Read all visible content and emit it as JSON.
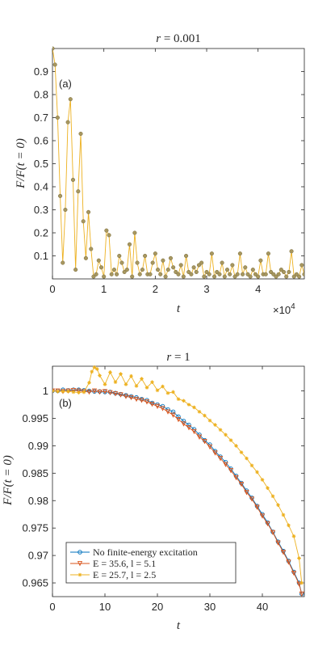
{
  "chart_data": [
    {
      "type": "line",
      "panel_label": "(a)",
      "title": "r = 0.001",
      "xlabel": "t",
      "ylabel": "F/F(t = 0)",
      "x_exponent": "×10",
      "x_exponent_power": "4",
      "xlim": [
        0,
        4.9
      ],
      "ylim": [
        0,
        1.0
      ],
      "xticks": [
        "0",
        "1",
        "2",
        "3",
        "4"
      ],
      "yticks": [
        "0.1",
        "0.2",
        "0.3",
        "0.4",
        "0.5",
        "0.6",
        "0.7",
        "0.8",
        "0.9"
      ],
      "colors": {
        "line": "#EDB120",
        "marker_face": "#A79760"
      },
      "series": [
        {
          "x": [
            0,
            0.05,
            0.1,
            0.15,
            0.2,
            0.25,
            0.3,
            0.35,
            0.4,
            0.45,
            0.5,
            0.55,
            0.6,
            0.65,
            0.7,
            0.75,
            0.8,
            0.85,
            0.9,
            0.95,
            1.0,
            1.05,
            1.1,
            1.15,
            1.2,
            1.25,
            1.3,
            1.35,
            1.4,
            1.45,
            1.5,
            1.55,
            1.6,
            1.65,
            1.7,
            1.75,
            1.8,
            1.85,
            1.9,
            1.95,
            2.0,
            2.05,
            2.1,
            2.15,
            2.2,
            2.25,
            2.3,
            2.35,
            2.4,
            2.45,
            2.5,
            2.55,
            2.6,
            2.65,
            2.7,
            2.75,
            2.8,
            2.85,
            2.9,
            2.95,
            3.0,
            3.05,
            3.1,
            3.15,
            3.2,
            3.25,
            3.3,
            3.35,
            3.4,
            3.45,
            3.5,
            3.55,
            3.6,
            3.65,
            3.7,
            3.75,
            3.8,
            3.85,
            3.9,
            3.95,
            4.0,
            4.05,
            4.1,
            4.15,
            4.2,
            4.25,
            4.3,
            4.35,
            4.4,
            4.45,
            4.5,
            4.55,
            4.6,
            4.65,
            4.7,
            4.75,
            4.8,
            4.85,
            4.9
          ],
          "y": [
            1.0,
            0.93,
            0.7,
            0.36,
            0.07,
            0.3,
            0.68,
            0.78,
            0.43,
            0.04,
            0.38,
            0.63,
            0.25,
            0.09,
            0.29,
            0.13,
            0.01,
            0.02,
            0.08,
            0.05,
            0.01,
            0.21,
            0.19,
            0.02,
            0.04,
            0.02,
            0.1,
            0.07,
            0.03,
            0.04,
            0.15,
            0.01,
            0.2,
            0.07,
            0.02,
            0.04,
            0.1,
            0.02,
            0.02,
            0.07,
            0.11,
            0.04,
            0.02,
            0.08,
            0.01,
            0.04,
            0.09,
            0.05,
            0.03,
            0.02,
            0.06,
            0.01,
            0.1,
            0.03,
            0.02,
            0.05,
            0.03,
            0.06,
            0.07,
            0.01,
            0.03,
            0.02,
            0.11,
            0.01,
            0.03,
            0.02,
            0.07,
            0.01,
            0.04,
            0.02,
            0.06,
            0.01,
            0.02,
            0.11,
            0.02,
            0.05,
            0.02,
            0.01,
            0.04,
            0.02,
            0.01,
            0.08,
            0.02,
            0.02,
            0.11,
            0.03,
            0.02,
            0.01,
            0.02,
            0.04,
            0.03,
            0.01,
            0.03,
            0.12,
            0.01,
            0.02,
            0.01,
            0.06,
            0.02
          ]
        }
      ]
    },
    {
      "type": "line",
      "panel_label": "(b)",
      "title": "r = 1",
      "xlabel": "t",
      "ylabel": "F/F(t = 0)",
      "xlim": [
        0,
        48
      ],
      "ylim": [
        0.9625,
        1.0045
      ],
      "xticks": [
        "0",
        "10",
        "20",
        "30",
        "40"
      ],
      "yticks": [
        "0.965",
        "0.97",
        "0.975",
        "0.98",
        "0.985",
        "0.99",
        "0.995",
        "1"
      ],
      "legend_position": "lower-left",
      "series": [
        {
          "name": "No finite-energy excitation",
          "color": "#0072BD",
          "marker": "circle",
          "x": [
            0,
            1,
            2,
            3,
            4,
            5,
            6,
            7,
            8,
            9,
            10,
            11,
            12,
            13,
            14,
            15,
            16,
            17,
            18,
            19,
            20,
            21,
            22,
            23,
            24,
            25,
            26,
            27,
            28,
            29,
            30,
            31,
            32,
            33,
            34,
            35,
            36,
            37,
            38,
            39,
            40,
            41,
            42,
            43,
            44,
            45,
            46,
            47,
            47.5
          ],
          "y": [
            1.0,
            1.0,
            1.0002,
            1.0001,
            1.0002,
            1.0002,
            1.0001,
            1.0,
            0.9999,
            0.9999,
            0.9998,
            0.9998,
            0.9996,
            0.9994,
            0.9992,
            0.999,
            0.9988,
            0.9985,
            0.9983,
            0.9978,
            0.9975,
            0.9972,
            0.9966,
            0.9962,
            0.9953,
            0.9945,
            0.9938,
            0.993,
            0.992,
            0.991,
            0.9902,
            0.989,
            0.988,
            0.987,
            0.9858,
            0.9845,
            0.9832,
            0.9818,
            0.9805,
            0.979,
            0.9775,
            0.976,
            0.9743,
            0.9725,
            0.9708,
            0.969,
            0.967,
            0.965,
            0.963
          ]
        },
        {
          "name": "E = 35.6, l = 5.1",
          "color": "#D95319",
          "marker": "triangle-down",
          "x": [
            0,
            1,
            2,
            3,
            4,
            5,
            6,
            7,
            8,
            9,
            10,
            11,
            12,
            13,
            14,
            15,
            16,
            17,
            18,
            19,
            20,
            21,
            22,
            23,
            24,
            25,
            26,
            27,
            28,
            29,
            30,
            31,
            32,
            33,
            34,
            35,
            36,
            37,
            38,
            39,
            40,
            41,
            42,
            43,
            44,
            45,
            46,
            47,
            47.5
          ],
          "y": [
            1.0,
            1.0,
            0.9999,
            1.0,
            1.0001,
            1.0,
            0.9999,
            0.9998,
            1.0,
            0.9998,
            0.9999,
            0.9997,
            0.9995,
            0.9993,
            0.999,
            0.9988,
            0.9985,
            0.9983,
            0.998,
            0.9976,
            0.9972,
            0.9968,
            0.9962,
            0.9956,
            0.9948,
            0.994,
            0.9933,
            0.9926,
            0.9916,
            0.9908,
            0.9898,
            0.9887,
            0.9877,
            0.9866,
            0.9855,
            0.9842,
            0.983,
            0.9815,
            0.9803,
            0.9788,
            0.9772,
            0.9758,
            0.9742,
            0.9723,
            0.9706,
            0.9688,
            0.9668,
            0.9648,
            0.963
          ]
        },
        {
          "name": "E = 25.7, l = 2.5",
          "color": "#EDB120",
          "marker": "star",
          "x": [
            0,
            1,
            2,
            3,
            4,
            5,
            6,
            7,
            7.5,
            8,
            8.5,
            9,
            10,
            11,
            12,
            13,
            14,
            15,
            16,
            17,
            18,
            19,
            20,
            21,
            22,
            23,
            24,
            25,
            26,
            27,
            28,
            29,
            30,
            31,
            32,
            33,
            34,
            35,
            36,
            37,
            38,
            39,
            40,
            41,
            42,
            43,
            44,
            45,
            46,
            47,
            47.5
          ],
          "y": [
            1.0,
            0.9999,
            0.9999,
            0.9999,
            0.9998,
            0.9997,
            0.9998,
            1.0015,
            1.0035,
            1.0043,
            1.004,
            1.0028,
            1.0012,
            1.0034,
            1.0016,
            1.0031,
            1.0012,
            1.0027,
            1.0009,
            1.0022,
            1.0006,
            1.0016,
            1.0001,
            1.0008,
            0.9996,
            0.9998,
            0.9985,
            0.9982,
            0.9975,
            0.997,
            0.9962,
            0.9955,
            0.9946,
            0.9938,
            0.9929,
            0.992,
            0.991,
            0.99,
            0.9888,
            0.9877,
            0.9864,
            0.9852,
            0.9838,
            0.9823,
            0.9808,
            0.9792,
            0.9774,
            0.9755,
            0.9735,
            0.9695,
            0.965
          ]
        }
      ]
    }
  ]
}
